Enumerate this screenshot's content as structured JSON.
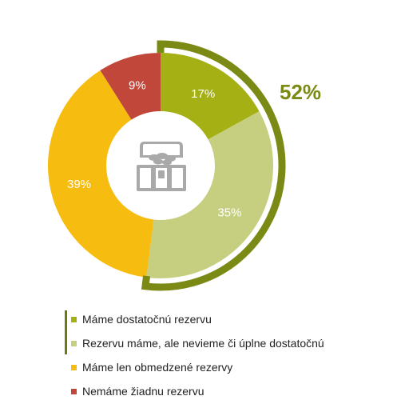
{
  "chart_data": {
    "type": "pie",
    "variant": "donut",
    "title": "",
    "center_icon": "treasure-chest-icon",
    "series": [
      {
        "name": "Máme dostatočnú rezervu",
        "value": 17,
        "label": "17%",
        "color": "#a4b013"
      },
      {
        "name": "Rezervu máme, ale nevieme či úplne dostatočnú",
        "value": 35,
        "label": "35%",
        "color": "#c6cf80"
      },
      {
        "name": "Máme len obmedzené rezervy",
        "value": 39,
        "label": "39%",
        "color": "#f7bc10"
      },
      {
        "name": "Nemáme žiadnu rezervu",
        "value": 9,
        "label": "9%",
        "color": "#c0473a"
      }
    ],
    "group_annotation": {
      "label": "52%",
      "covers": [
        0,
        1
      ],
      "color": "#7a8a14"
    },
    "legend_position": "bottom"
  }
}
